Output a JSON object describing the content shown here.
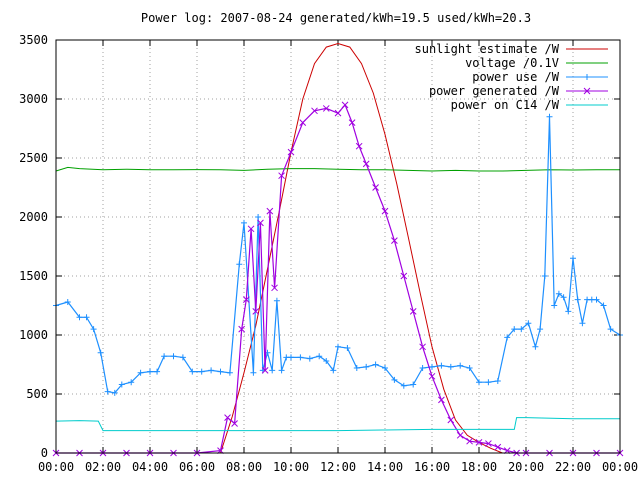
{
  "chart_data": {
    "type": "line",
    "title": "Power log: 2007-08-24 generated/kWh=19.5 used/kWh=20.3",
    "xlabel": "",
    "ylabel": "",
    "x_ticks": [
      "00:00",
      "02:00",
      "04:00",
      "06:00",
      "08:00",
      "10:00",
      "12:00",
      "14:00",
      "16:00",
      "18:00",
      "20:00",
      "22:00",
      "00:00"
    ],
    "xlim_hours": [
      0,
      24
    ],
    "ylim": [
      0,
      3500
    ],
    "y_ticks": [
      0,
      500,
      1000,
      1500,
      2000,
      2500,
      3000,
      3500
    ],
    "grid": true,
    "legend_position": "top-right",
    "series": [
      {
        "name": "sunlight estimate /W",
        "color": "#cc0000",
        "style": "line",
        "x": [
          7.0,
          7.5,
          8.0,
          8.5,
          9.0,
          9.5,
          10.0,
          10.5,
          11.0,
          11.5,
          12.0,
          12.5,
          13.0,
          13.5,
          14.0,
          14.5,
          15.0,
          15.5,
          16.0,
          16.5,
          17.0,
          17.5,
          18.0,
          18.5,
          19.0
        ],
        "y": [
          0,
          310,
          680,
          1080,
          1560,
          2050,
          2550,
          3000,
          3300,
          3440,
          3470,
          3440,
          3300,
          3050,
          2700,
          2280,
          1820,
          1350,
          900,
          540,
          280,
          150,
          90,
          40,
          0
        ]
      },
      {
        "name": "voltage /0.1V",
        "color": "#00a000",
        "style": "line",
        "x": [
          0,
          0.5,
          1,
          2,
          3,
          4,
          5,
          6,
          7,
          8,
          9,
          10,
          11,
          12,
          13,
          14,
          15,
          16,
          17,
          18,
          19,
          20,
          21,
          22,
          23,
          24
        ],
        "y": [
          2390,
          2420,
          2410,
          2400,
          2405,
          2400,
          2400,
          2402,
          2400,
          2395,
          2405,
          2410,
          2410,
          2405,
          2400,
          2400,
          2395,
          2390,
          2395,
          2390,
          2390,
          2395,
          2400,
          2398,
          2400,
          2400
        ]
      },
      {
        "name": "power use /W",
        "color": "#1e90ff",
        "style": "linepoints",
        "x": [
          0,
          0.5,
          1.0,
          1.3,
          1.6,
          1.9,
          2.2,
          2.5,
          2.8,
          3.2,
          3.6,
          4.0,
          4.3,
          4.6,
          5.0,
          5.4,
          5.8,
          6.2,
          6.6,
          7.0,
          7.4,
          7.8,
          8.0,
          8.4,
          8.6,
          8.8,
          9.0,
          9.2,
          9.4,
          9.6,
          9.8,
          10.0,
          10.4,
          10.8,
          11.2,
          11.5,
          11.8,
          12.0,
          12.4,
          12.8,
          13.2,
          13.6,
          14.0,
          14.4,
          14.8,
          15.2,
          15.6,
          16.0,
          16.4,
          16.8,
          17.2,
          17.6,
          18.0,
          18.4,
          18.8,
          19.2,
          19.5,
          19.8,
          20.1,
          20.4,
          20.6,
          20.8,
          21.0,
          21.2,
          21.4,
          21.6,
          21.8,
          22.0,
          22.2,
          22.4,
          22.6,
          22.8,
          23.0,
          23.3,
          23.6,
          24.0
        ],
        "y": [
          1250,
          1280,
          1150,
          1150,
          1050,
          850,
          520,
          510,
          580,
          600,
          680,
          690,
          690,
          820,
          820,
          810,
          690,
          690,
          700,
          690,
          680,
          1600,
          1950,
          680,
          2000,
          700,
          850,
          700,
          1290,
          700,
          810,
          810,
          810,
          800,
          820,
          780,
          700,
          900,
          890,
          720,
          730,
          750,
          720,
          620,
          570,
          580,
          720,
          730,
          740,
          730,
          740,
          720,
          600,
          600,
          610,
          980,
          1050,
          1050,
          1100,
          900,
          1050,
          1500,
          2850,
          1250,
          1350,
          1320,
          1200,
          1650,
          1300,
          1100,
          1300,
          1300,
          1300,
          1250,
          1050,
          1000
        ]
      },
      {
        "name": "power generated /W",
        "color": "#a000e0",
        "style": "linepoints",
        "x": [
          0,
          1,
          2,
          3,
          4,
          5,
          6,
          7.0,
          7.3,
          7.6,
          7.9,
          8.1,
          8.3,
          8.5,
          8.7,
          8.9,
          9.1,
          9.3,
          9.6,
          10.0,
          10.5,
          11.0,
          11.5,
          12.0,
          12.3,
          12.6,
          12.9,
          13.2,
          13.6,
          14.0,
          14.4,
          14.8,
          15.2,
          15.6,
          16.0,
          16.4,
          16.8,
          17.2,
          17.6,
          18.0,
          18.4,
          18.8,
          19.2,
          19.6,
          20.0,
          21,
          22,
          23,
          24
        ],
        "y": [
          0,
          0,
          0,
          0,
          0,
          0,
          0,
          20,
          300,
          250,
          1050,
          1300,
          1900,
          1200,
          1950,
          700,
          2050,
          1400,
          2350,
          2550,
          2800,
          2900,
          2920,
          2880,
          2950,
          2800,
          2600,
          2450,
          2250,
          2050,
          1800,
          1500,
          1200,
          900,
          650,
          450,
          280,
          150,
          100,
          90,
          80,
          50,
          20,
          0,
          0,
          0,
          0,
          0,
          0
        ]
      },
      {
        "name": "power on C14 /W",
        "color": "#00cccc",
        "style": "line",
        "x": [
          0,
          1.0,
          1.8,
          2.0,
          2.2,
          4,
          6,
          8,
          10,
          12,
          14,
          16,
          18,
          19.0,
          19.5,
          19.6,
          20,
          22,
          24
        ],
        "y": [
          270,
          275,
          270,
          190,
          190,
          190,
          190,
          190,
          190,
          190,
          195,
          200,
          200,
          200,
          200,
          300,
          300,
          290,
          290
        ]
      }
    ]
  }
}
